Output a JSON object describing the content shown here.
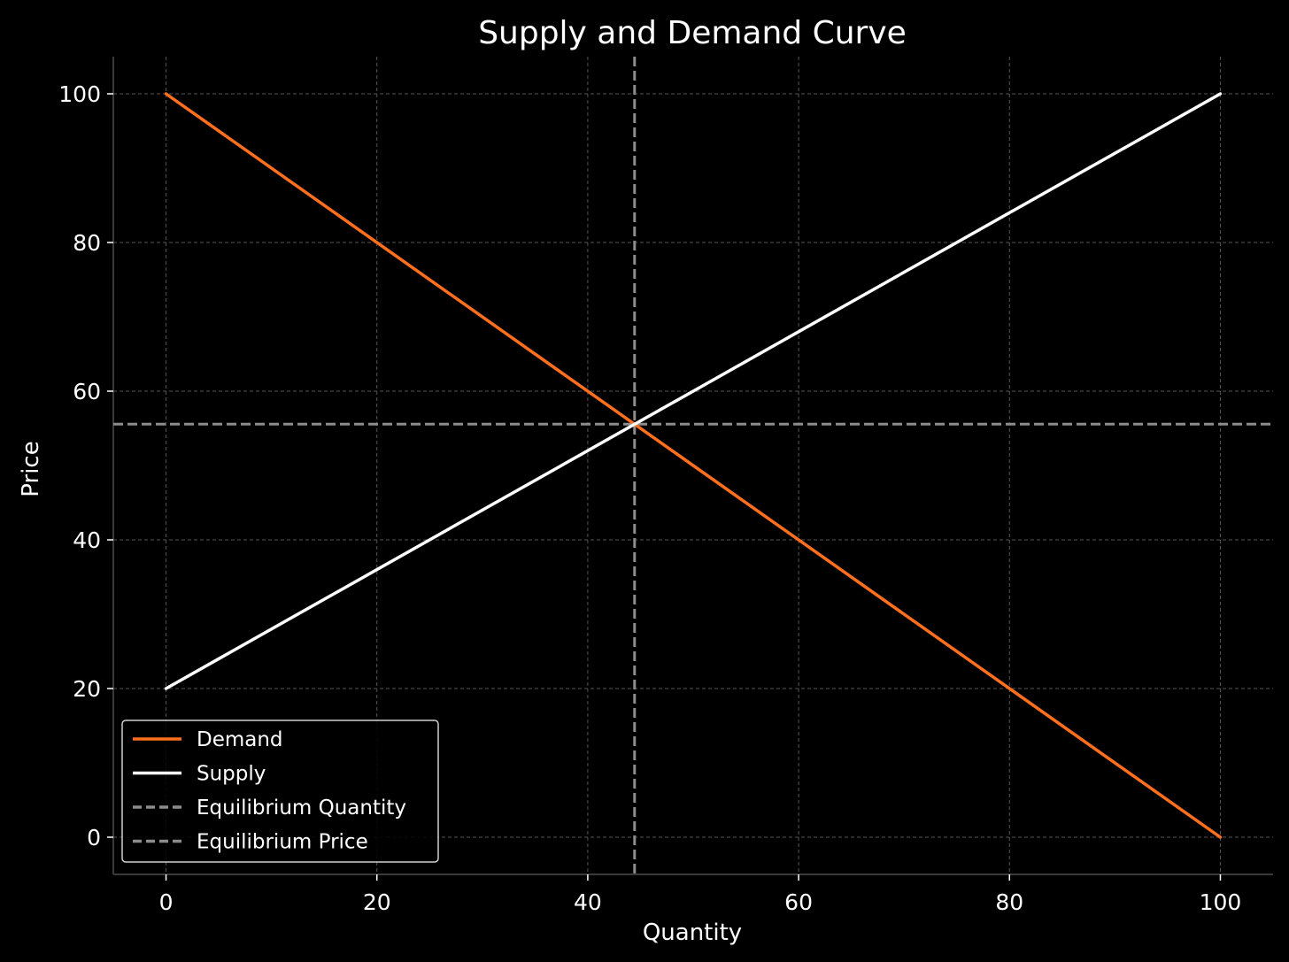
{
  "chart_data": {
    "type": "line",
    "title": "Supply and Demand Curve",
    "xlabel": "Quantity",
    "ylabel": "Price",
    "xlim": [
      -5,
      105
    ],
    "ylim": [
      -5,
      105
    ],
    "x_ticks": [
      0,
      20,
      40,
      60,
      80,
      100
    ],
    "y_ticks": [
      0,
      20,
      40,
      60,
      80,
      100
    ],
    "x_tick_labels": [
      "0",
      "20",
      "40",
      "60",
      "80",
      "100"
    ],
    "y_tick_labels": [
      "0",
      "20",
      "40",
      "60",
      "80",
      "100"
    ],
    "grid": true,
    "legend_position": "lower-left",
    "series": [
      {
        "name": "Demand",
        "color": "#ff6f1e",
        "style": "solid",
        "x": [
          0,
          100
        ],
        "y": [
          100,
          0
        ]
      },
      {
        "name": "Supply",
        "color": "#ffffff",
        "style": "solid",
        "x": [
          0,
          100
        ],
        "y": [
          20,
          100
        ]
      }
    ],
    "reference_lines": [
      {
        "name": "Equilibrium Quantity",
        "orientation": "vertical",
        "value": 44.44,
        "color": "#8c8c8c",
        "style": "dashed"
      },
      {
        "name": "Equilibrium Price",
        "orientation": "horizontal",
        "value": 55.56,
        "color": "#8c8c8c",
        "style": "dashed"
      }
    ],
    "colors": {
      "background": "#000000",
      "axis": "#3a3a3a",
      "grid": "#555555",
      "text": "#ffffff",
      "legend_border": "#d0d0d0"
    }
  }
}
